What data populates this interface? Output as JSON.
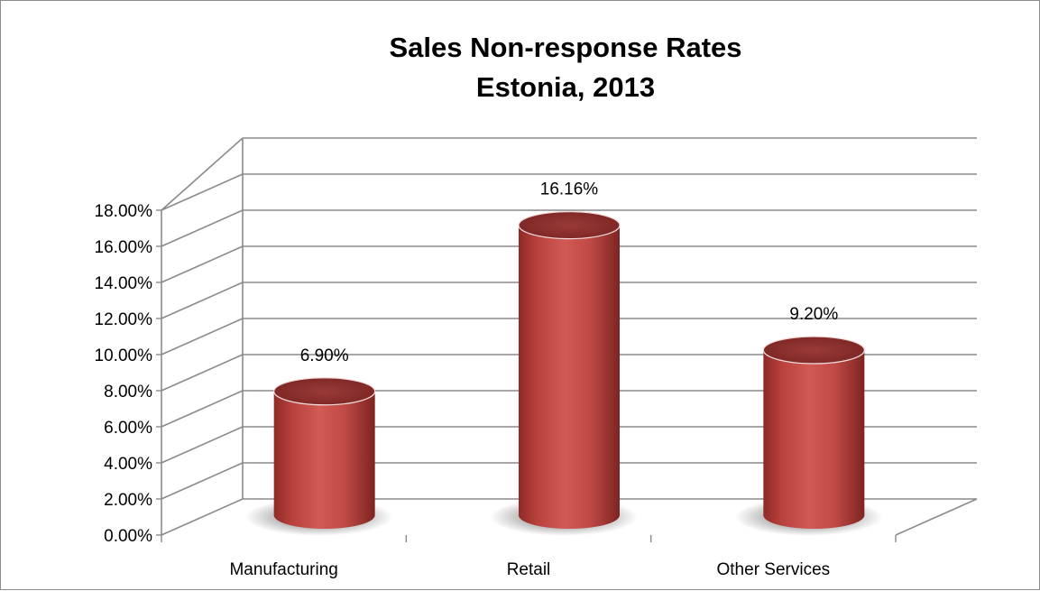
{
  "chart_data": {
    "type": "bar",
    "title": "Sales Non-response Rates",
    "subtitle": "Estonia, 2013",
    "categories": [
      "Manufacturing",
      "Retail",
      "Other Services"
    ],
    "values": [
      6.9,
      16.16,
      9.2
    ],
    "data_labels": [
      "6.90%",
      "16.16%",
      "9.20%"
    ],
    "y_ticks": [
      0,
      2,
      4,
      6,
      8,
      10,
      12,
      14,
      16,
      18
    ],
    "y_tick_labels": [
      "0.00%",
      "2.00%",
      "4.00%",
      "6.00%",
      "8.00%",
      "10.00%",
      "12.00%",
      "14.00%",
      "16.00%",
      "18.00%"
    ],
    "ylim": [
      0,
      18
    ],
    "grid": true,
    "legend": "none",
    "bar_style": "3d-cylinder",
    "bar_color": "#c0504d"
  }
}
